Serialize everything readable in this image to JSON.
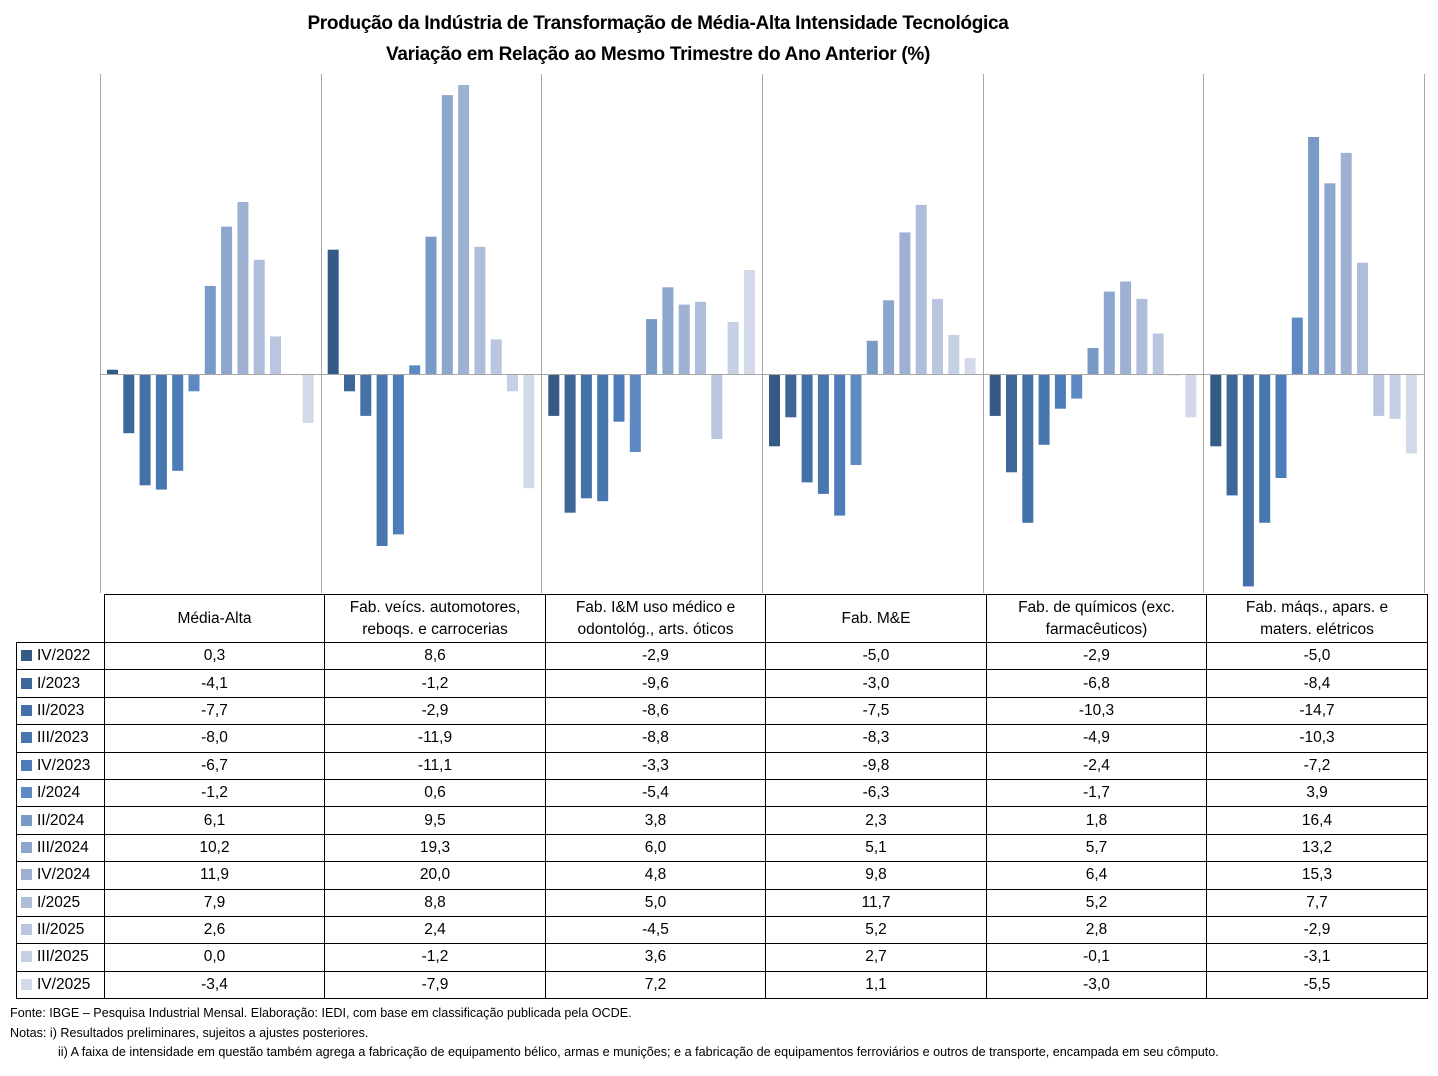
{
  "chart_data": {
    "type": "bar",
    "title": "Produção da Indústria de Transformação de Média-Alta Intensidade Tecnológica",
    "subtitle": "Variação em Relação ao Mesmo Trimestre do Ano Anterior (%)",
    "xlabel": "",
    "ylabel": "",
    "ylim": [
      -15,
      20.7
    ],
    "grid": false,
    "legend_placement": "data-table-left",
    "categories": [
      "Média-Alta",
      "Fab. veícs. automotores, reboqs. e carrocerias",
      "Fab. I&M uso médico e odontológ., arts. óticos",
      "Fab. M&E",
      "Fab. de químicos (exc. farmacêuticos)",
      "Fab. máqs., apars. e maters. elétricos"
    ],
    "category_lines": [
      [
        "Média-Alta"
      ],
      [
        "Fab. veícs. automotores,",
        "reboqs. e carrocerias"
      ],
      [
        "Fab. I&M uso médico e",
        "odontológ., arts. óticos"
      ],
      [
        "Fab. M&E"
      ],
      [
        "Fab. de químicos (exc.",
        "farmacêuticos)"
      ],
      [
        "Fab. máqs., apars. e",
        "maters. elétricos"
      ]
    ],
    "series": [
      {
        "name": "IV/2022",
        "color": "#355A86",
        "values": [
          0.3,
          8.6,
          -2.9,
          -5.0,
          -2.9,
          -5.0
        ],
        "labels": [
          "0,3",
          "8,6",
          "-2,9",
          "-5,0",
          "-2,9",
          "-5,0"
        ]
      },
      {
        "name": "I/2023",
        "color": "#3D6699",
        "values": [
          -4.1,
          -1.2,
          -9.6,
          -3.0,
          -6.8,
          -8.4
        ],
        "labels": [
          "-4,1",
          "-1,2",
          "-9,6",
          "-3,0",
          "-6,8",
          "-8,4"
        ]
      },
      {
        "name": "II/2023",
        "color": "#4472A8",
        "values": [
          -7.7,
          -2.9,
          -8.6,
          -7.5,
          -10.3,
          -14.7
        ],
        "labels": [
          "-7,7",
          "-2,9",
          "-8,6",
          "-7,5",
          "-10,3",
          "-14,7"
        ]
      },
      {
        "name": "III/2023",
        "color": "#4877B0",
        "values": [
          -8.0,
          -11.9,
          -8.8,
          -8.3,
          -4.9,
          -10.3
        ],
        "labels": [
          "-8,0",
          "-11,9",
          "-8,8",
          "-8,3",
          "-4,9",
          "-10,3"
        ]
      },
      {
        "name": "IV/2023",
        "color": "#4C7DB8",
        "values": [
          -6.7,
          -11.1,
          -3.3,
          -9.8,
          -2.4,
          -7.2
        ],
        "labels": [
          "-6,7",
          "-11,1",
          "-3,3",
          "-9,8",
          "-2,4",
          "-7,2"
        ]
      },
      {
        "name": "I/2024",
        "color": "#5F89C2",
        "values": [
          -1.2,
          0.6,
          -5.4,
          -6.3,
          -1.7,
          3.9
        ],
        "labels": [
          "-1,2",
          "0,6",
          "-5,4",
          "-6,3",
          "-1,7",
          "3,9"
        ]
      },
      {
        "name": "II/2024",
        "color": "#789AC7",
        "values": [
          6.1,
          9.5,
          3.8,
          2.3,
          1.8,
          16.4
        ],
        "labels": [
          "6,1",
          "9,5",
          "3,8",
          "2,3",
          "1,8",
          "16,4"
        ]
      },
      {
        "name": "III/2024",
        "color": "#8CA6CD",
        "values": [
          10.2,
          19.3,
          6.0,
          5.1,
          5.7,
          13.2
        ],
        "labels": [
          "10,2",
          "19,3",
          "6,0",
          "5,1",
          "5,7",
          "13,2"
        ]
      },
      {
        "name": "IV/2024",
        "color": "#9EB1D3",
        "values": [
          11.9,
          20.0,
          4.8,
          9.8,
          6.4,
          15.3
        ],
        "labels": [
          "11,9",
          "20,0",
          "4,8",
          "9,8",
          "6,4",
          "15,3"
        ]
      },
      {
        "name": "I/2025",
        "color": "#AEBDD9",
        "values": [
          7.9,
          8.8,
          5.0,
          11.7,
          5.2,
          7.7
        ],
        "labels": [
          "7,9",
          "8,8",
          "5,0",
          "11,7",
          "5,2",
          "7,7"
        ]
      },
      {
        "name": "II/2025",
        "color": "#BAC6DF",
        "values": [
          2.6,
          2.4,
          -4.5,
          5.2,
          2.8,
          -2.9
        ],
        "labels": [
          "2,6",
          "2,4",
          "-4,5",
          "5,2",
          "2,8",
          "-2,9"
        ]
      },
      {
        "name": "III/2025",
        "color": "#C6D0E4",
        "values": [
          0.0,
          -1.2,
          3.6,
          2.7,
          -0.1,
          -3.1
        ],
        "labels": [
          "0,0",
          "-1,2",
          "3,6",
          "2,7",
          "-0,1",
          "-3,1"
        ]
      },
      {
        "name": "IV/2025",
        "color": "#D2DAE9",
        "values": [
          -3.4,
          -7.9,
          7.2,
          1.1,
          -3.0,
          -5.5
        ],
        "labels": [
          "-3,4",
          "-7,9",
          "7,2",
          "1,1",
          "-3,0",
          "-5,5"
        ]
      }
    ]
  },
  "footer": {
    "source": "Fonte: IBGE – Pesquisa Industrial Mensal. Elaboração: IEDI, com base em classificação publicada pela OCDE.",
    "note1": "Notas: i) Resultados preliminares, sujeitos a ajustes posteriores.",
    "note2": "ii) A faixa de intensidade em questão também  agrega a fabricação de equipamento  bélico, armas e munições; e a fabricação de equipamentos  ferroviários e outros de transporte,  encampada em seu cômputo."
  }
}
